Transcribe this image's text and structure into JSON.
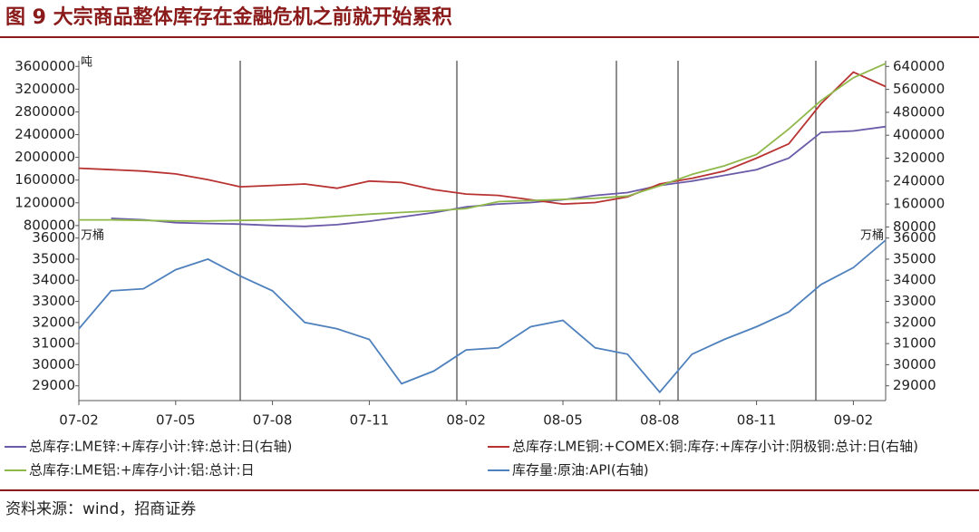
{
  "title": "图 9  大宗商品整体库存在金融危机之前就开始累积",
  "source": "资料来源：wind，招商证券",
  "chart_data": [
    {
      "type": "line",
      "y_unit": "吨",
      "ylim": [
        750000,
        3700000
      ],
      "yticks": [
        800000,
        1200000,
        1600000,
        2000000,
        2400000,
        2800000,
        3200000,
        3600000
      ],
      "y2lim": [
        75000,
        660000
      ],
      "y2ticks": [
        80000,
        160000,
        240000,
        320000,
        400000,
        480000,
        560000,
        640000
      ],
      "series": [
        {
          "name": "总库存:LME锌:+库存小计:锌:总计:日(右轴)",
          "color": "#6a5aa8",
          "axis": "y2",
          "values": [
            null,
            110000,
            105000,
            95000,
            92000,
            90000,
            85000,
            82000,
            88000,
            100000,
            115000,
            130000,
            150000,
            160000,
            165000,
            175000,
            190000,
            200000,
            225000,
            240000,
            260000,
            280000,
            320000,
            410000,
            415000,
            430000
          ]
        },
        {
          "name": "总库存:LME铜:+COMEX:铜:库存:+库存小计:阴极铜:总计:日(右轴)",
          "color": "#b83232",
          "axis": "y2",
          "values": [
            285000,
            280000,
            275000,
            265000,
            245000,
            220000,
            225000,
            230000,
            215000,
            240000,
            235000,
            210000,
            195000,
            190000,
            175000,
            160000,
            165000,
            185000,
            230000,
            250000,
            275000,
            320000,
            370000,
            510000,
            620000,
            570000
          ]
        },
        {
          "name": "总库存:LME铝:+库存小计:铝:总计:日",
          "color": "#8fb84a",
          "values": [
            900000,
            900000,
            890000,
            880000,
            880000,
            890000,
            900000,
            920000,
            960000,
            1000000,
            1030000,
            1060000,
            1100000,
            1220000,
            1240000,
            1260000,
            1280000,
            1320000,
            1500000,
            1700000,
            1850000,
            2050000,
            2500000,
            3000000,
            3400000,
            3650000
          ]
        }
      ]
    },
    {
      "type": "line",
      "y_unit": "万桶",
      "y2_unit": "万桶",
      "categories": [
        "07-02",
        null,
        null,
        "07-05",
        null,
        null,
        "07-08",
        null,
        null,
        "07-11",
        null,
        null,
        "08-02",
        null,
        null,
        "08-05",
        null,
        null,
        "08-08",
        null,
        null,
        "08-11",
        null,
        null,
        "09-02",
        null
      ],
      "ylim": [
        28300,
        36200
      ],
      "yticks": [
        29000,
        30000,
        31000,
        32000,
        33000,
        34000,
        35000,
        36000
      ],
      "y2lim": [
        28300,
        36200
      ],
      "y2ticks": [
        29000,
        30000,
        31000,
        32000,
        33000,
        34000,
        35000,
        36000
      ],
      "series": [
        {
          "name": "库存量:原油:API(右轴)",
          "color": "#4f81bd",
          "axis": "y2",
          "values": [
            31700,
            33500,
            33600,
            34500,
            35000,
            34200,
            33500,
            32000,
            31700,
            31200,
            29100,
            29700,
            30700,
            30800,
            31800,
            32100,
            30800,
            30500,
            28700,
            30500,
            31200,
            31800,
            32500,
            33800,
            34600,
            35900
          ]
        }
      ]
    }
  ]
}
